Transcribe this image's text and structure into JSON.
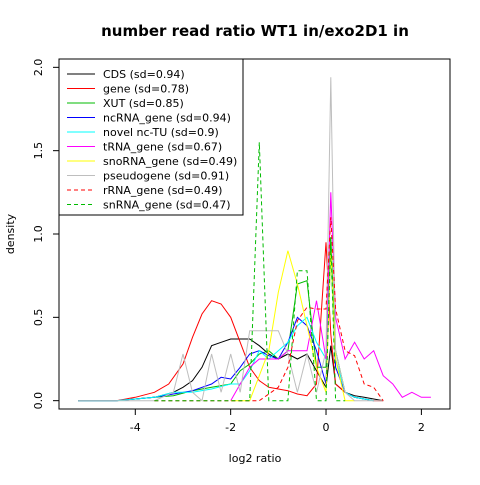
{
  "chart_data": {
    "type": "line",
    "title": "number read ratio WT1 in/exo2D1 in",
    "xlabel": "log2 ratio",
    "ylabel": "density",
    "xlim": [
      -5.6,
      2.6
    ],
    "ylim": [
      -0.05,
      2.05
    ],
    "x_ticks": [
      -4,
      -2,
      0,
      2
    ],
    "y_ticks": [
      0.0,
      0.5,
      1.0,
      1.5,
      2.0
    ],
    "x_tick_labels": [
      "-4",
      "-2",
      "0",
      "2"
    ],
    "y_tick_labels": [
      "0.0",
      "0.5",
      "1.0",
      "1.5",
      "2.0"
    ],
    "grid": false,
    "legend_position": "top-left",
    "series": [
      {
        "name": "CDS (sd=0.94)",
        "color": "#000000",
        "dash": "solid",
        "x": [
          -5.2,
          -4.4,
          -3.6,
          -3.2,
          -3.0,
          -2.8,
          -2.6,
          -2.4,
          -2.2,
          -2.0,
          -1.8,
          -1.6,
          -1.4,
          -1.2,
          -1.0,
          -0.8,
          -0.6,
          -0.4,
          -0.2,
          0.0,
          0.1,
          0.2,
          0.4,
          0.6,
          0.8,
          1.0,
          1.2
        ],
        "y": [
          0.0,
          0.0,
          0.02,
          0.05,
          0.08,
          0.12,
          0.2,
          0.33,
          0.35,
          0.37,
          0.37,
          0.37,
          0.33,
          0.28,
          0.25,
          0.28,
          0.25,
          0.28,
          0.18,
          0.08,
          0.33,
          0.1,
          0.05,
          0.03,
          0.02,
          0.01,
          0.0
        ]
      },
      {
        "name": "gene (sd=0.78)",
        "color": "#ff0000",
        "dash": "solid",
        "x": [
          -5.2,
          -4.4,
          -4.0,
          -3.6,
          -3.3,
          -3.0,
          -2.8,
          -2.6,
          -2.4,
          -2.2,
          -2.0,
          -1.8,
          -1.6,
          -1.4,
          -1.2,
          -1.0,
          -0.8,
          -0.6,
          -0.4,
          -0.2,
          0.0,
          0.1,
          0.2,
          0.4,
          0.6,
          0.8,
          1.0,
          1.2
        ],
        "y": [
          0.0,
          0.0,
          0.02,
          0.05,
          0.1,
          0.22,
          0.38,
          0.52,
          0.6,
          0.58,
          0.5,
          0.35,
          0.2,
          0.12,
          0.08,
          0.07,
          0.06,
          0.04,
          0.03,
          0.1,
          0.95,
          0.4,
          0.1,
          0.05,
          0.02,
          0.01,
          0.0,
          0.0
        ]
      },
      {
        "name": "XUT (sd=0.85)",
        "color": "#00bb00",
        "dash": "solid",
        "x": [
          -5.2,
          -4.4,
          -4.0,
          -3.6,
          -3.2,
          -2.8,
          -2.4,
          -2.0,
          -1.8,
          -1.6,
          -1.4,
          -1.2,
          -1.0,
          -0.8,
          -0.6,
          -0.4,
          -0.2,
          0.0,
          0.1,
          0.2,
          0.4,
          0.6,
          0.8,
          1.0
        ],
        "y": [
          0.0,
          0.0,
          0.01,
          0.02,
          0.03,
          0.06,
          0.08,
          0.1,
          0.18,
          0.22,
          0.28,
          0.3,
          0.25,
          0.3,
          0.7,
          0.72,
          0.2,
          0.2,
          0.98,
          0.3,
          0.05,
          0.02,
          0.01,
          0.0
        ]
      },
      {
        "name": "ncRNA_gene (sd=0.94)",
        "color": "#0000ff",
        "dash": "solid",
        "x": [
          -5.2,
          -4.4,
          -4.0,
          -3.6,
          -3.2,
          -2.8,
          -2.4,
          -2.2,
          -2.0,
          -1.8,
          -1.6,
          -1.4,
          -1.2,
          -1.0,
          -0.8,
          -0.6,
          -0.4,
          -0.2,
          0.0,
          0.1,
          0.2,
          0.4,
          0.6,
          0.8,
          1.0
        ],
        "y": [
          0.0,
          0.0,
          0.01,
          0.02,
          0.04,
          0.06,
          0.1,
          0.14,
          0.13,
          0.2,
          0.28,
          0.3,
          0.27,
          0.25,
          0.35,
          0.5,
          0.45,
          0.3,
          0.1,
          0.9,
          0.2,
          0.05,
          0.02,
          0.01,
          0.0
        ]
      },
      {
        "name": "novel nc-TU (sd=0.9)",
        "color": "#00ffff",
        "dash": "solid",
        "x": [
          -5.2,
          -4.4,
          -4.0,
          -3.6,
          -3.2,
          -2.8,
          -2.4,
          -2.0,
          -1.8,
          -1.6,
          -1.4,
          -1.2,
          -1.0,
          -0.8,
          -0.6,
          -0.4,
          -0.2,
          0.0,
          0.1,
          0.2,
          0.4,
          0.6,
          0.8,
          1.0
        ],
        "y": [
          0.0,
          0.0,
          0.01,
          0.02,
          0.05,
          0.05,
          0.07,
          0.1,
          0.1,
          0.18,
          0.3,
          0.25,
          0.3,
          0.35,
          0.45,
          0.5,
          0.35,
          0.25,
          0.88,
          0.25,
          0.05,
          0.02,
          0.01,
          0.0
        ]
      },
      {
        "name": "tRNA_gene (sd=0.67)",
        "color": "#ff00ff",
        "dash": "solid",
        "x": [
          -2.0,
          -1.6,
          -1.4,
          -1.2,
          -1.0,
          -0.8,
          -0.6,
          -0.4,
          -0.2,
          0.0,
          0.1,
          0.2,
          0.4,
          0.6,
          0.8,
          1.0,
          1.2,
          1.4,
          1.6,
          1.8,
          2.0,
          2.2
        ],
        "y": [
          0.0,
          0.2,
          0.25,
          0.25,
          0.25,
          0.3,
          0.3,
          0.3,
          0.6,
          0.25,
          1.25,
          0.5,
          0.25,
          0.35,
          0.25,
          0.3,
          0.15,
          0.1,
          0.02,
          0.05,
          0.02,
          0.02
        ]
      },
      {
        "name": "snoRNA_gene (sd=0.49)",
        "color": "#ffff00",
        "dash": "solid",
        "x": [
          -2.0,
          -1.6,
          -1.4,
          -1.2,
          -1.0,
          -0.8,
          -0.6,
          -0.4,
          -0.2,
          0.0,
          0.1,
          0.2,
          0.4,
          0.6
        ],
        "y": [
          0.0,
          0.0,
          0.15,
          0.3,
          0.65,
          0.9,
          0.7,
          0.45,
          0.2,
          0.05,
          0.9,
          0.25,
          0.0,
          0.0
        ]
      },
      {
        "name": "pseudogene (sd=0.91)",
        "color": "#bebebe",
        "dash": "solid",
        "x": [
          -5.2,
          -4.4,
          -4.0,
          -3.6,
          -3.2,
          -3.0,
          -2.8,
          -2.6,
          -2.4,
          -2.2,
          -2.0,
          -1.8,
          -1.6,
          -1.4,
          -1.2,
          -1.0,
          -0.8,
          -0.6,
          -0.4,
          -0.2,
          0.0,
          0.1,
          0.2,
          0.4,
          0.6,
          0.8,
          1.0,
          1.2
        ],
        "y": [
          0.0,
          0.0,
          0.0,
          0.0,
          0.05,
          0.28,
          0.05,
          0.0,
          0.28,
          0.05,
          0.28,
          0.05,
          0.42,
          0.42,
          0.42,
          0.42,
          0.28,
          0.05,
          0.28,
          0.05,
          0.3,
          1.94,
          0.3,
          0.05,
          0.0,
          0.0,
          0.0,
          0.0
        ]
      },
      {
        "name": "rRNA_gene (sd=0.49)",
        "color": "#ff0000",
        "dash": "dashed",
        "x": [
          -3.6,
          -1.4,
          -1.0,
          -0.8,
          -0.6,
          -0.4,
          -0.2,
          0.0,
          0.1,
          0.2,
          0.4,
          0.6,
          0.8,
          1.0,
          1.2
        ],
        "y": [
          0.0,
          0.0,
          0.08,
          0.2,
          0.48,
          0.56,
          0.55,
          0.55,
          1.1,
          0.55,
          0.3,
          0.27,
          0.1,
          0.08,
          0.0
        ]
      },
      {
        "name": "snRNA_gene (sd=0.47)",
        "color": "#00bb00",
        "dash": "dashed",
        "x": [
          -3.6,
          -2.0,
          -1.8,
          -1.6,
          -1.4,
          -1.2,
          -1.0,
          -0.8,
          -0.6,
          -0.4,
          -0.2,
          0.0,
          0.1,
          0.2,
          0.4
        ],
        "y": [
          0.0,
          0.0,
          0.0,
          0.0,
          1.55,
          0.0,
          0.0,
          0.0,
          0.78,
          0.78,
          0.0,
          0.0,
          0.98,
          0.0,
          0.0
        ]
      }
    ]
  }
}
